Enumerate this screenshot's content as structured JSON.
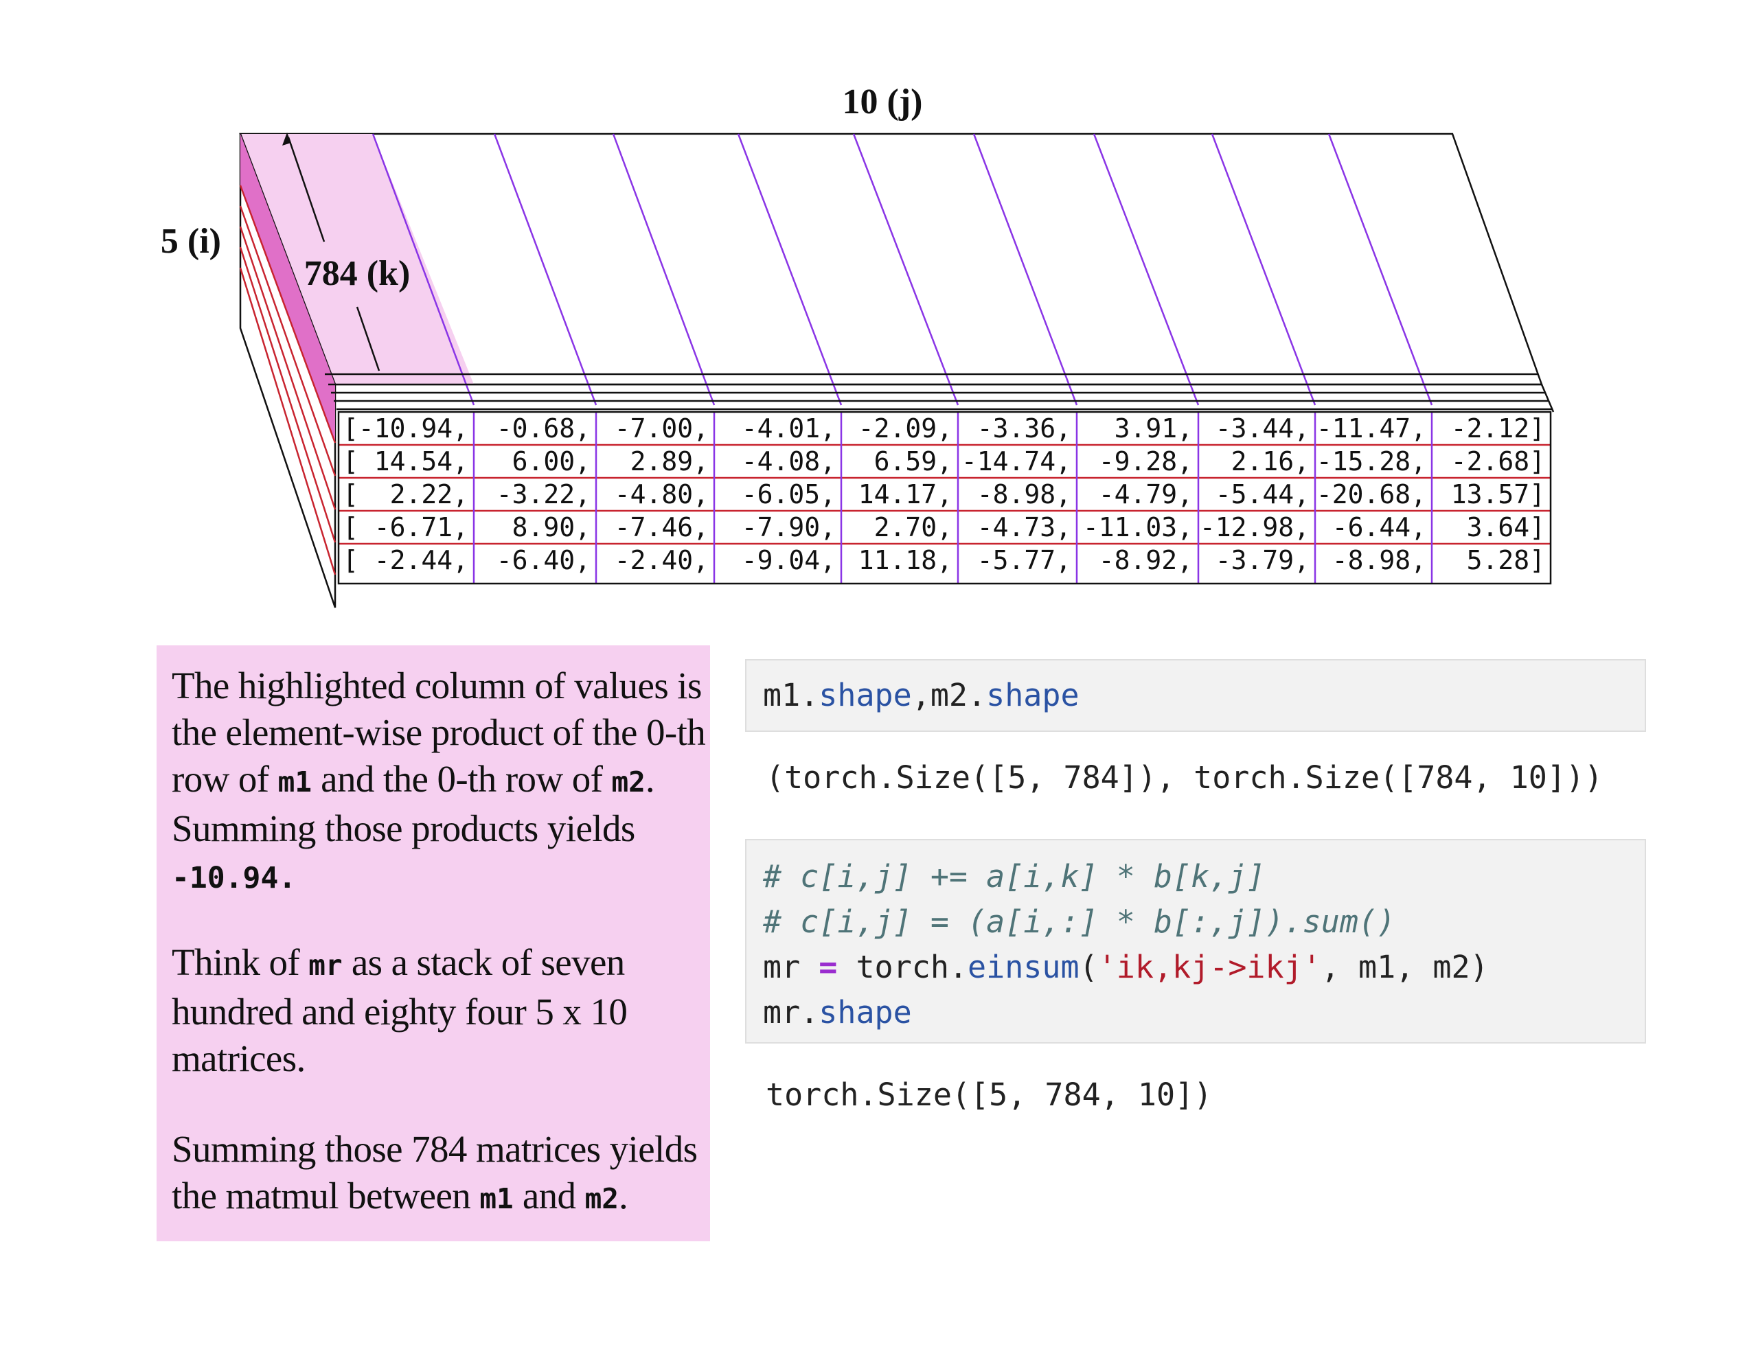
{
  "diagram": {
    "labels": {
      "j": "10 (j)",
      "i": "5 (i)",
      "k": "784 (k)"
    },
    "rows": [
      [
        "[-10.94,",
        "-0.68,",
        "-7.00,",
        "-4.01,",
        "-2.09,",
        "-3.36,",
        "3.91,",
        "-3.44,",
        "-11.47,",
        "-2.12]"
      ],
      [
        "[ 14.54,",
        "6.00,",
        "2.89,",
        "-4.08,",
        "6.59,",
        "-14.74,",
        "-9.28,",
        "2.16,",
        "-15.28,",
        "-2.68]"
      ],
      [
        "[  2.22,",
        "-3.22,",
        "-4.80,",
        "-6.05,",
        "14.17,",
        "-8.98,",
        "-4.79,",
        "-5.44,",
        "-20.68,",
        "13.57]"
      ],
      [
        "[ -6.71,",
        "8.90,",
        "-7.46,",
        "-7.90,",
        "2.70,",
        "-4.73,",
        "-11.03,",
        "-12.98,",
        "-6.44,",
        "3.64]"
      ],
      [
        "[ -2.44,",
        "-6.40,",
        "-2.40,",
        "-9.04,",
        "11.18,",
        "-5.77,",
        "-8.92,",
        "-3.79,",
        "-8.98,",
        "5.28]"
      ]
    ],
    "colors": {
      "highlight": "#f6d0f0",
      "highlight_dark": "#e070c8",
      "grid_purple": "#8a35e6",
      "grid_red": "#c8242f",
      "outline": "#111111"
    }
  },
  "note": {
    "p1_a": "The highlighted column of values is the element-wise product of the 0-th row of ",
    "m1": "m1",
    "p1_b": " and the 0-th row of ",
    "m2": "m2",
    "p1_c": ". Summing those products yields ",
    "result": "-10.94.",
    "p2_a": "Think of ",
    "mr": "mr",
    "p2_b": " as a stack of seven hundred and eighty four 5 x 10 matrices.",
    "p3_a": "Summing those 784 matrices yields the matmul between ",
    "p3_m1": "m1",
    "p3_b": " and ",
    "p3_m2": "m2",
    "p3_c": ".",
    "background": "#f6d0f0"
  },
  "notebook": {
    "cell1": {
      "a": "m1.",
      "b": "shape",
      "c": ",m2.",
      "d": "shape"
    },
    "out1": "(torch.Size([5, 784]), torch.Size([784, 10]))",
    "cell2": {
      "comment1": "# c[i,j] += a[i,k] * b[k,j]",
      "comment2": "# c[i,j] = (a[i,:] * b[:,j]).sum()",
      "l3a": "mr ",
      "l3op": "=",
      "l3b": " torch.",
      "l3fn": "einsum",
      "l3c": "(",
      "l3str": "'ik,kj->ikj'",
      "l3d": ", m1, m2)",
      "l4a": "mr.",
      "l4b": "shape"
    },
    "out2": "torch.Size([5, 784, 10])"
  }
}
